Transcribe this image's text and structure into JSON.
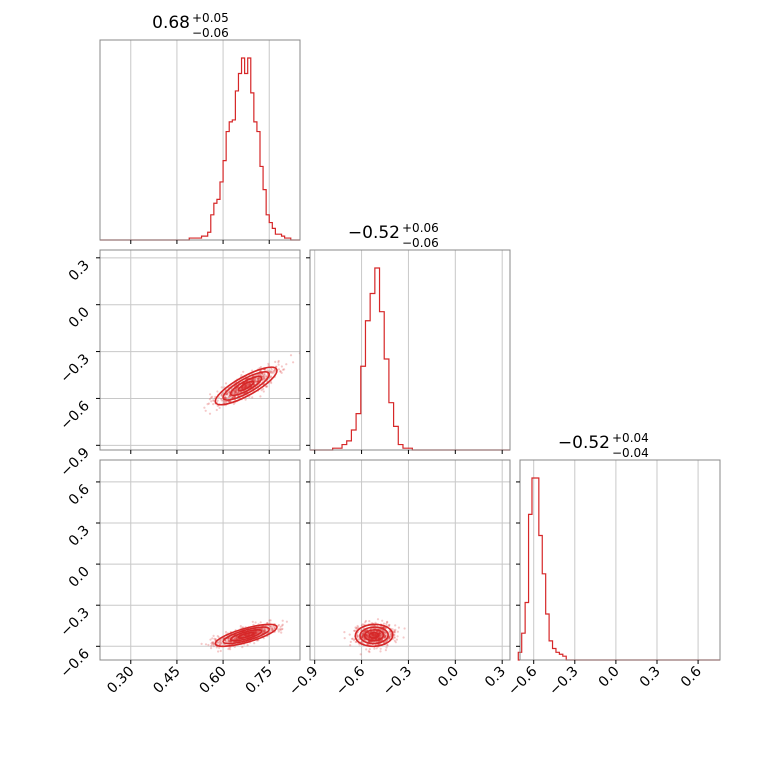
{
  "chart_data": {
    "type": "corner",
    "color": "#d62728",
    "grid": true,
    "panel_titles": [
      {
        "main": "0.68",
        "sup": "+0.05",
        "sub": "−0.06"
      },
      {
        "main": "−0.52",
        "sup": "+0.06",
        "sub": "−0.06"
      },
      {
        "main": "−0.52",
        "sup": "+0.04",
        "sub": "−0.04"
      }
    ],
    "axes": [
      {
        "range": [
          0.2,
          0.85
        ],
        "ticks": [
          0.3,
          0.45,
          0.6,
          0.75
        ],
        "tick_labels": [
          "0.30",
          "0.45",
          "0.60",
          "0.75"
        ]
      },
      {
        "range": [
          -0.93,
          0.35
        ],
        "ticks": [
          -0.9,
          -0.6,
          -0.3,
          0.0,
          0.3
        ],
        "tick_labels": [
          "−0.9",
          "−0.6",
          "−0.3",
          "0.0",
          "0.3"
        ]
      },
      {
        "range": [
          -0.7,
          0.76
        ],
        "ticks": [
          -0.6,
          -0.3,
          0.0,
          0.3,
          0.6
        ],
        "tick_labels": [
          "−0.6",
          "−0.3",
          "0.0",
          "0.3",
          "0.6"
        ]
      }
    ],
    "marginals": [
      {
        "bins": [
          0.485,
          0.495,
          0.505,
          0.515,
          0.525,
          0.535,
          0.545,
          0.555,
          0.565,
          0.575,
          0.585,
          0.595,
          0.605,
          0.615,
          0.625,
          0.635,
          0.645,
          0.655,
          0.665,
          0.675,
          0.685,
          0.695,
          0.705,
          0.715,
          0.725,
          0.735,
          0.745,
          0.755,
          0.765,
          0.775,
          0.785,
          0.795,
          0.805,
          0.815
        ],
        "counts": [
          0,
          0.01,
          0.01,
          0.01,
          0.01,
          0.02,
          0.02,
          0.04,
          0.13,
          0.19,
          0.21,
          0.3,
          0.41,
          0.56,
          0.61,
          0.62,
          0.77,
          0.86,
          0.94,
          0.86,
          0.94,
          0.76,
          0.61,
          0.56,
          0.38,
          0.26,
          0.13,
          0.09,
          0.06,
          0.03,
          0.03,
          0.02,
          0.01,
          0.01
        ]
      },
      {
        "bins": [
          -0.8,
          -0.77,
          -0.74,
          -0.71,
          -0.68,
          -0.65,
          -0.62,
          -0.59,
          -0.56,
          -0.53,
          -0.5,
          -0.47,
          -0.44,
          -0.41,
          -0.38,
          -0.35,
          -0.32,
          -0.29,
          -0.26
        ],
        "counts": [
          0.0,
          0.01,
          0.01,
          0.03,
          0.05,
          0.11,
          0.2,
          0.46,
          0.71,
          0.86,
          1.0,
          0.76,
          0.5,
          0.26,
          0.13,
          0.03,
          0.01,
          0.01,
          0.0
        ]
      },
      {
        "bins": [
          -0.7,
          -0.675,
          -0.65,
          -0.625,
          -0.6,
          -0.575,
          -0.55,
          -0.525,
          -0.5,
          -0.475,
          -0.45,
          -0.425,
          -0.4,
          -0.375,
          -0.35,
          -0.325
        ],
        "counts": [
          0.04,
          0.14,
          0.3,
          0.76,
          0.95,
          0.95,
          0.65,
          0.45,
          0.24,
          0.1,
          0.06,
          0.04,
          0.03,
          0.02,
          0.0,
          0.0
        ]
      }
    ],
    "joint": [
      {
        "x_param": 0,
        "y_param": 1,
        "center": [
          0.675,
          -0.52
        ],
        "spread": [
          0.05,
          0.06
        ],
        "correlation": 0.82
      },
      {
        "x_param": 0,
        "y_param": 2,
        "center": [
          0.675,
          -0.52
        ],
        "spread": [
          0.05,
          0.04
        ],
        "correlation": 0.75
      },
      {
        "x_param": 1,
        "y_param": 2,
        "center": [
          -0.52,
          -0.52
        ],
        "spread": [
          0.06,
          0.04
        ],
        "correlation": 0.05
      }
    ]
  }
}
